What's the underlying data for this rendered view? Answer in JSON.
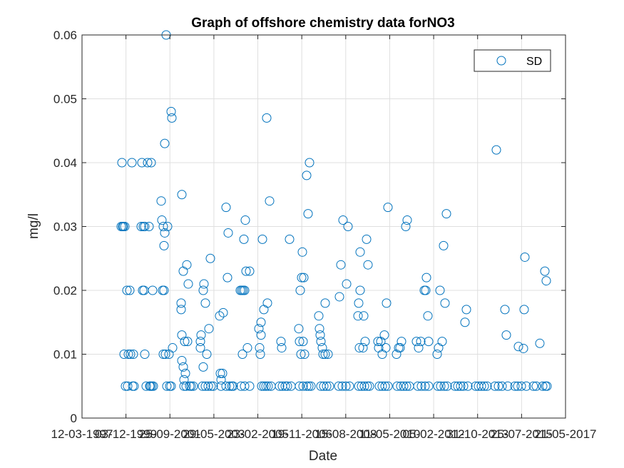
{
  "chart_data": {
    "type": "scatter",
    "title": "Graph of offshore chemistry data forNO3",
    "xlabel": "Date",
    "ylabel": "mg/l",
    "ylim": [
      0,
      0.06
    ],
    "y_ticks": [
      "0",
      "0.01",
      "0.02",
      "0.03",
      "0.04",
      "0.05",
      "0.06"
    ],
    "x_tick_labels": [
      "12-03-1997",
      "03-12-1999",
      "25-09-2001",
      "29-05-2003",
      "23-02-2005",
      "19-11-2006",
      "15-08-2008",
      "11-05-2010",
      "05-02-2012",
      "31-10-2013",
      "25-07-2015",
      "21-05-2017"
    ],
    "grid": true,
    "legend_position": "top-right",
    "marker_color": "#0072bd",
    "series": [
      {
        "name": "SD",
        "points": [
          [
            171,
            0.04
          ],
          [
            170,
            0.03
          ],
          [
            172,
            0.03
          ],
          [
            173,
            0.03
          ],
          [
            175,
            0.03
          ],
          [
            174,
            0.01
          ],
          [
            178,
            0.02
          ],
          [
            182,
            0.02
          ],
          [
            176,
            0.005
          ],
          [
            179,
            0.005
          ],
          [
            180,
            0.01
          ],
          [
            183,
            0.01
          ],
          [
            185,
            0.04
          ],
          [
            187,
            0.01
          ],
          [
            186,
            0.005
          ],
          [
            188,
            0.005
          ],
          [
            199,
            0.04
          ],
          [
            198,
            0.03
          ],
          [
            201,
            0.03
          ],
          [
            203,
            0.03
          ],
          [
            200,
            0.02
          ],
          [
            202,
            0.02
          ],
          [
            203,
            0.01
          ],
          [
            205,
            0.005
          ],
          [
            207,
            0.04
          ],
          [
            209,
            0.03
          ],
          [
            210,
            0.005
          ],
          [
            212,
            0.04
          ],
          [
            211,
            0.005
          ],
          [
            213,
            0.005
          ],
          [
            214,
            0.02
          ],
          [
            215,
            0.005
          ],
          [
            226,
            0.034
          ],
          [
            227,
            0.031
          ],
          [
            229,
            0.03
          ],
          [
            228,
            0.02
          ],
          [
            230,
            0.02
          ],
          [
            230,
            0.027
          ],
          [
            231,
            0.029
          ],
          [
            231,
            0.043
          ],
          [
            233,
            0.06
          ],
          [
            235,
            0.03
          ],
          [
            229,
            0.01
          ],
          [
            232,
            0.01
          ],
          [
            237,
            0.01
          ],
          [
            234,
            0.005
          ],
          [
            238,
            0.005
          ],
          [
            240,
            0.048
          ],
          [
            241,
            0.047
          ],
          [
            240,
            0.005
          ],
          [
            242,
            0.011
          ],
          [
            255,
            0.035
          ],
          [
            254,
            0.018
          ],
          [
            254,
            0.017
          ],
          [
            257,
            0.023
          ],
          [
            259,
            0.012
          ],
          [
            262,
            0.024
          ],
          [
            263,
            0.012
          ],
          [
            264,
            0.021
          ],
          [
            255,
            0.013
          ],
          [
            255,
            0.009
          ],
          [
            257,
            0.008
          ],
          [
            258,
            0.006
          ],
          [
            260,
            0.007
          ],
          [
            258,
            0.005
          ],
          [
            261,
            0.005
          ],
          [
            266,
            0.005
          ],
          [
            268,
            0.005
          ],
          [
            271,
            0.005
          ],
          [
            282,
            0.013
          ],
          [
            281,
            0.012
          ],
          [
            281,
            0.011
          ],
          [
            286,
            0.021
          ],
          [
            285,
            0.02
          ],
          [
            288,
            0.018
          ],
          [
            285,
            0.008
          ],
          [
            290,
            0.01
          ],
          [
            293,
            0.014
          ],
          [
            295,
            0.025
          ],
          [
            284,
            0.005
          ],
          [
            288,
            0.005
          ],
          [
            292,
            0.005
          ],
          [
            296,
            0.005
          ],
          [
            299,
            0.005
          ],
          [
            308,
            0.016
          ],
          [
            309,
            0.007
          ],
          [
            312,
            0.007
          ],
          [
            310,
            0.005
          ],
          [
            313,
            0.0165
          ],
          [
            317,
            0.033
          ],
          [
            317,
            0.005
          ],
          [
            319,
            0.022
          ],
          [
            320,
            0.029
          ],
          [
            322,
            0.005
          ],
          [
            325,
            0.005
          ],
          [
            327,
            0.005
          ],
          [
            310,
            0.006
          ],
          [
            337,
            0.02
          ],
          [
            339,
            0.02
          ],
          [
            341,
            0.02
          ],
          [
            343,
            0.02
          ],
          [
            340,
            0.01
          ],
          [
            342,
            0.028
          ],
          [
            344,
            0.031
          ],
          [
            345,
            0.023
          ],
          [
            347,
            0.011
          ],
          [
            350,
            0.023
          ],
          [
            338,
            0.005
          ],
          [
            343,
            0.005
          ],
          [
            350,
            0.005
          ],
          [
            363,
            0.014
          ],
          [
            364,
            0.011
          ],
          [
            365,
            0.01
          ],
          [
            366,
            0.015
          ],
          [
            366,
            0.013
          ],
          [
            368,
            0.028
          ],
          [
            370,
            0.017
          ],
          [
            374,
            0.047
          ],
          [
            375,
            0.018
          ],
          [
            378,
            0.034
          ],
          [
            367,
            0.005
          ],
          [
            370,
            0.005
          ],
          [
            373,
            0.005
          ],
          [
            376,
            0.005
          ],
          [
            380,
            0.005
          ],
          [
            394,
            0.012
          ],
          [
            395,
            0.011
          ],
          [
            392,
            0.005
          ],
          [
            396,
            0.005
          ],
          [
            400,
            0.005
          ],
          [
            403,
            0.005
          ],
          [
            406,
            0.028
          ],
          [
            408,
            0.005
          ],
          [
            419,
            0.014
          ],
          [
            420,
            0.012
          ],
          [
            421,
            0.02
          ],
          [
            422,
            0.01
          ],
          [
            423,
            0.022
          ],
          [
            424,
            0.026
          ],
          [
            425,
            0.012
          ],
          [
            426,
            0.022
          ],
          [
            427,
            0.01
          ],
          [
            430,
            0.038
          ],
          [
            432,
            0.032
          ],
          [
            434,
            0.04
          ],
          [
            420,
            0.005
          ],
          [
            425,
            0.005
          ],
          [
            430,
            0.005
          ],
          [
            433,
            0.005
          ],
          [
            436,
            0.005
          ],
          [
            447,
            0.016
          ],
          [
            448,
            0.014
          ],
          [
            449,
            0.013
          ],
          [
            450,
            0.012
          ],
          [
            452,
            0.011
          ],
          [
            453,
            0.01
          ],
          [
            456,
            0.018
          ],
          [
            456,
            0.01
          ],
          [
            460,
            0.01
          ],
          [
            450,
            0.005
          ],
          [
            454,
            0.005
          ],
          [
            458,
            0.005
          ],
          [
            462,
            0.005
          ],
          [
            476,
            0.019
          ],
          [
            478,
            0.024
          ],
          [
            481,
            0.031
          ],
          [
            486,
            0.021
          ],
          [
            488,
            0.03
          ],
          [
            475,
            0.005
          ],
          [
            480,
            0.005
          ],
          [
            485,
            0.005
          ],
          [
            490,
            0.005
          ],
          [
            502,
            0.016
          ],
          [
            503,
            0.018
          ],
          [
            505,
            0.026
          ],
          [
            505,
            0.02
          ],
          [
            504,
            0.011
          ],
          [
            509,
            0.011
          ],
          [
            510,
            0.016
          ],
          [
            512,
            0.012
          ],
          [
            514,
            0.028
          ],
          [
            516,
            0.024
          ],
          [
            503,
            0.005
          ],
          [
            507,
            0.005
          ],
          [
            511,
            0.005
          ],
          [
            515,
            0.005
          ],
          [
            518,
            0.005
          ],
          [
            530,
            0.012
          ],
          [
            531,
            0.011
          ],
          [
            534,
            0.012
          ],
          [
            536,
            0.01
          ],
          [
            539,
            0.013
          ],
          [
            541,
            0.011
          ],
          [
            542,
            0.018
          ],
          [
            544,
            0.033
          ],
          [
            532,
            0.005
          ],
          [
            536,
            0.005
          ],
          [
            540,
            0.005
          ],
          [
            544,
            0.005
          ],
          [
            556,
            0.01
          ],
          [
            559,
            0.011
          ],
          [
            561,
            0.011
          ],
          [
            563,
            0.012
          ],
          [
            569,
            0.03
          ],
          [
            571,
            0.031
          ],
          [
            557,
            0.005
          ],
          [
            562,
            0.005
          ],
          [
            566,
            0.005
          ],
          [
            570,
            0.005
          ],
          [
            574,
            0.005
          ],
          [
            584,
            0.012
          ],
          [
            587,
            0.011
          ],
          [
            590,
            0.012
          ],
          [
            595,
            0.02
          ],
          [
            597,
            0.02
          ],
          [
            598,
            0.022
          ],
          [
            600,
            0.016
          ],
          [
            601,
            0.012
          ],
          [
            586,
            0.005
          ],
          [
            591,
            0.005
          ],
          [
            596,
            0.005
          ],
          [
            601,
            0.005
          ],
          [
            613,
            0.01
          ],
          [
            615,
            0.011
          ],
          [
            617,
            0.02
          ],
          [
            620,
            0.012
          ],
          [
            622,
            0.027
          ],
          [
            624,
            0.018
          ],
          [
            626,
            0.032
          ],
          [
            614,
            0.005
          ],
          [
            618,
            0.005
          ],
          [
            623,
            0.005
          ],
          [
            627,
            0.005
          ],
          [
            638,
            0.005
          ],
          [
            642,
            0.005
          ],
          [
            646,
            0.005
          ],
          [
            650,
            0.005
          ],
          [
            652,
            0.015
          ],
          [
            654,
            0.017
          ],
          [
            656,
            0.005
          ],
          [
            667,
            0.005
          ],
          [
            671,
            0.005
          ],
          [
            675,
            0.005
          ],
          [
            679,
            0.005
          ],
          [
            683,
            0.005
          ],
          [
            696,
            0.042
          ],
          [
            694,
            0.005
          ],
          [
            699,
            0.005
          ],
          [
            704,
            0.005
          ],
          [
            708,
            0.017
          ],
          [
            710,
            0.013
          ],
          [
            712,
            0.005
          ],
          [
            722,
            0.005
          ],
          [
            726,
            0.005
          ],
          [
            727,
            0.0112
          ],
          [
            731,
            0.005
          ],
          [
            734,
            0.0109
          ],
          [
            735,
            0.017
          ],
          [
            736,
            0.0252
          ],
          [
            738,
            0.005
          ],
          [
            748,
            0.005
          ],
          [
            752,
            0.005
          ],
          [
            757,
            0.0117
          ],
          [
            761,
            0.005
          ],
          [
            765,
            0.005
          ],
          [
            764,
            0.023
          ],
          [
            766,
            0.0215
          ],
          [
            767,
            0.005
          ]
        ]
      }
    ]
  }
}
